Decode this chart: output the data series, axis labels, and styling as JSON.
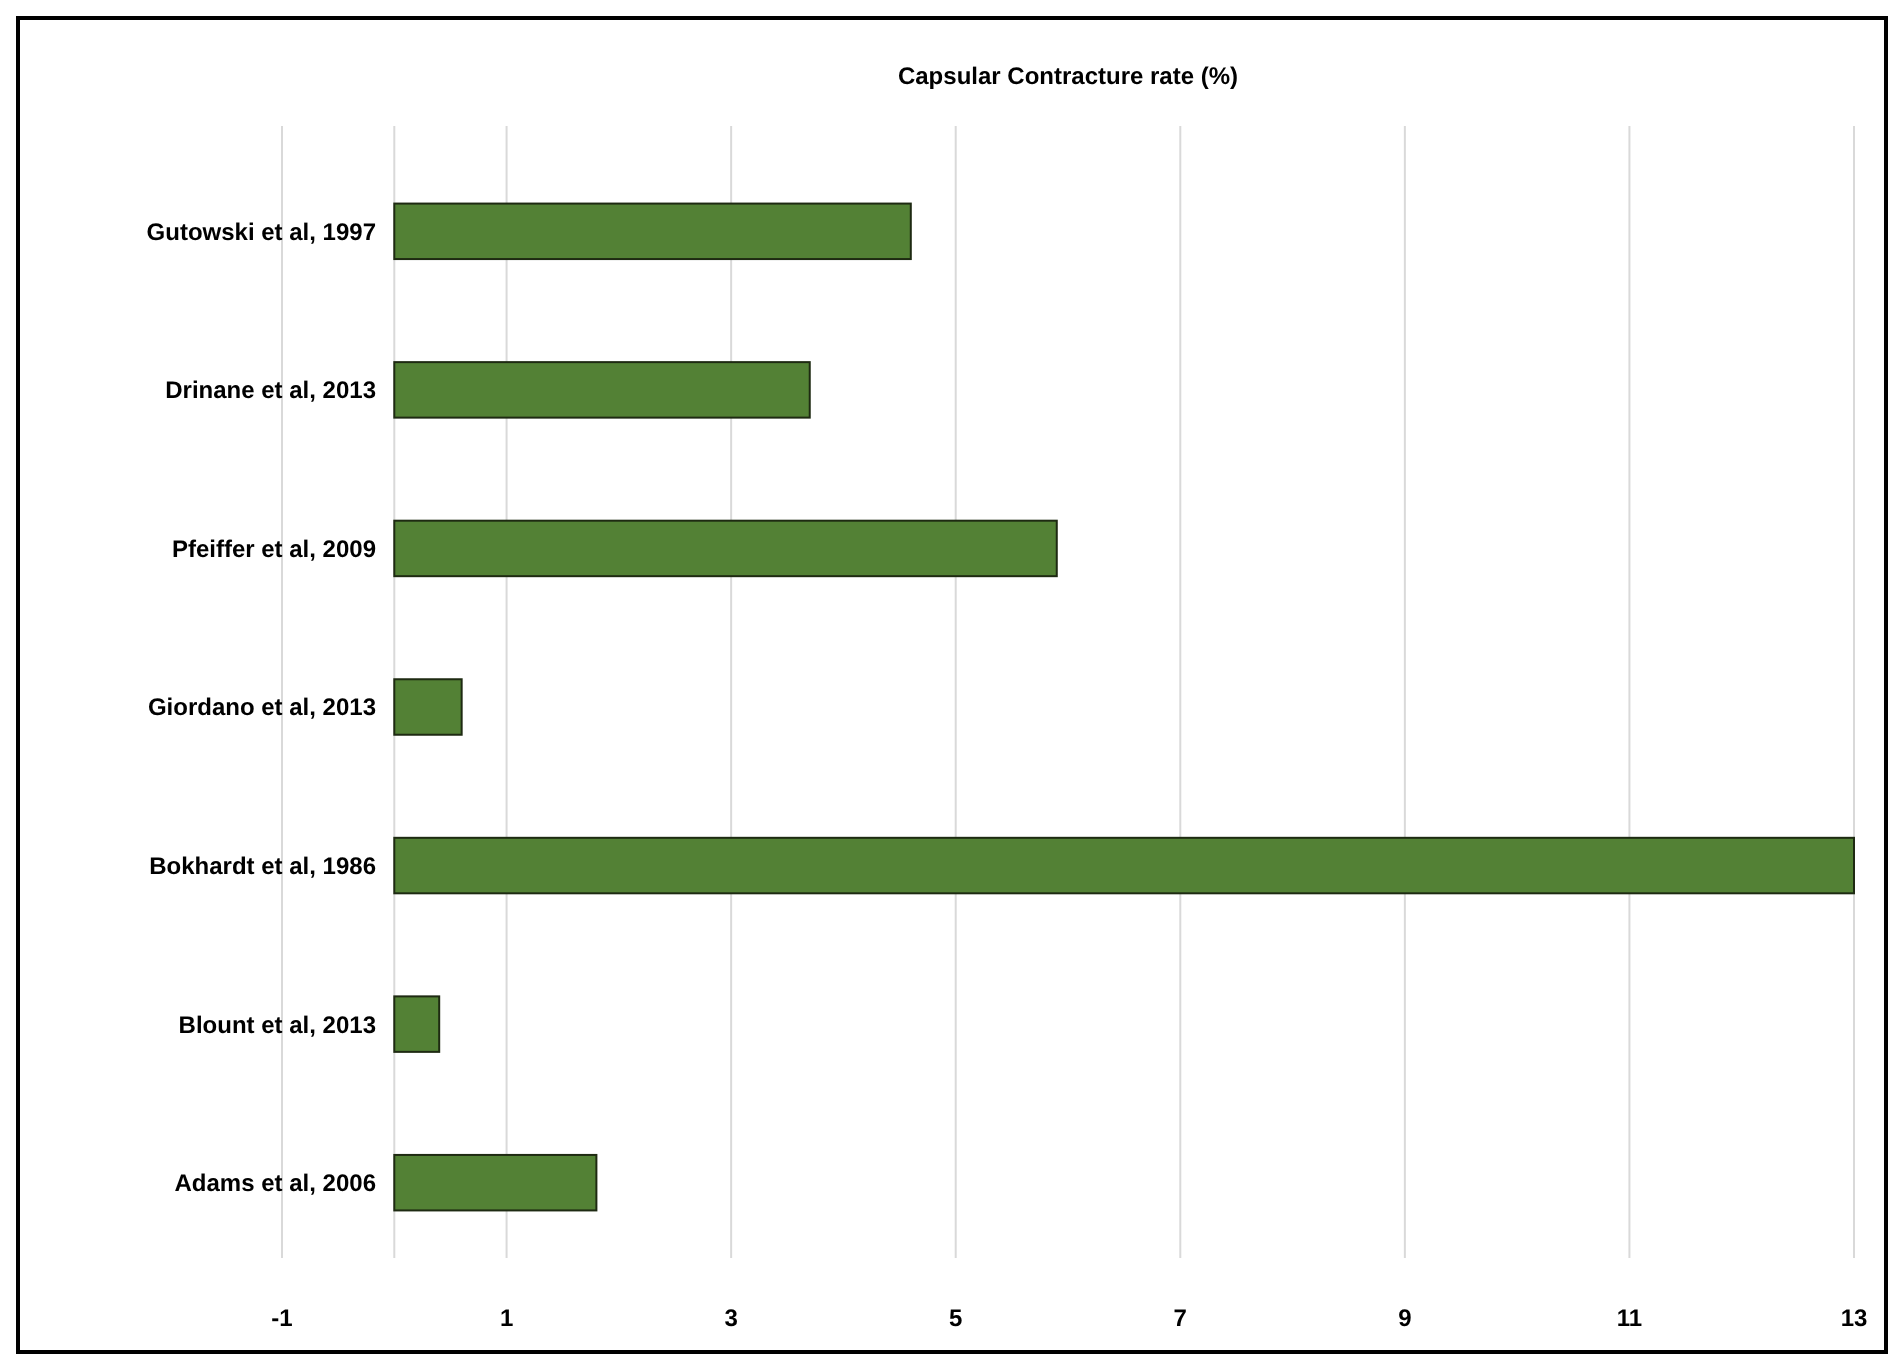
{
  "chart_data": {
    "type": "bar",
    "orientation": "horizontal",
    "title": "Capsular Contracture rate (%)",
    "categories": [
      "Gutowski et al, 1997",
      "Drinane et al, 2013",
      "Pfeiffer et al, 2009",
      "Giordano et al, 2013",
      "Bokhardt et al, 1986",
      "Blount et al, 2013",
      "Adams et al, 2006"
    ],
    "values": [
      4.6,
      3.7,
      5.9,
      0.6,
      13,
      0.4,
      1.8
    ],
    "color": "#538135",
    "xlim": [
      -1,
      13
    ],
    "xticks": [
      -1,
      1,
      3,
      5,
      7,
      9,
      11,
      13
    ],
    "grid": "x"
  }
}
